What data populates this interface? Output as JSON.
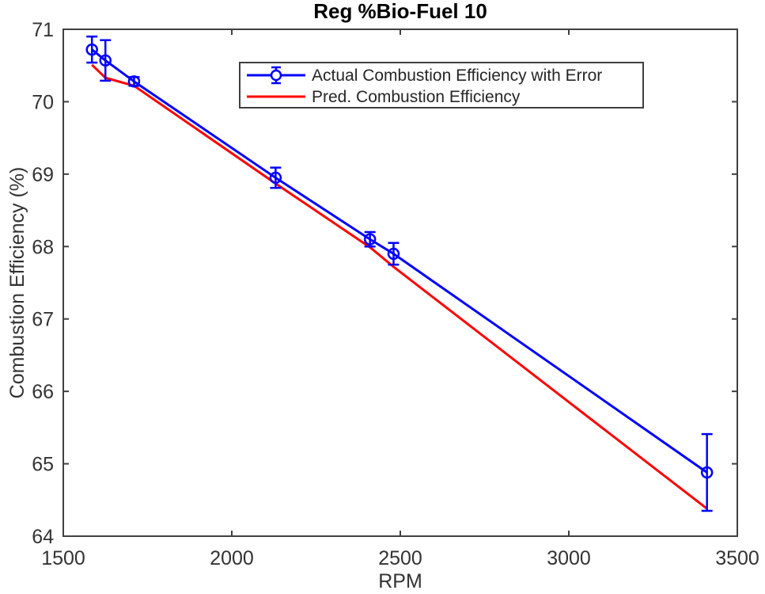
{
  "figure": {
    "background": "#ffffff"
  },
  "chart_data": {
    "type": "line",
    "title": "Reg %Bio-Fuel 10",
    "xlabel": "RPM",
    "ylabel": "Combustion Efficiency (%)",
    "xlim": [
      1500,
      3500
    ],
    "ylim": [
      64,
      71
    ],
    "xticks": [
      1500,
      2000,
      2500,
      3000,
      3500
    ],
    "yticks": [
      64,
      65,
      66,
      67,
      68,
      69,
      70,
      71
    ],
    "grid": false,
    "box": true,
    "legend_position": "inside-upper-center",
    "x": [
      1585,
      1625,
      1710,
      2130,
      2410,
      2480,
      3410
    ],
    "series": [
      {
        "name": "Actual Combustion Efficiency with Error",
        "color": "#0000ff",
        "marker": "open-circle",
        "has_error_bars": true,
        "values": [
          70.72,
          70.57,
          70.28,
          68.95,
          68.1,
          67.9,
          64.88
        ],
        "yerr": [
          0.18,
          0.28,
          0.06,
          0.14,
          0.1,
          0.15,
          0.53
        ]
      },
      {
        "name": "Pred. Combustion Efficiency",
        "color": "#ff0000",
        "marker": "none",
        "has_error_bars": false,
        "values": [
          70.51,
          70.33,
          70.22,
          68.87,
          67.99,
          67.72,
          64.38
        ]
      }
    ]
  },
  "colors": {
    "axis_frame": "#404040",
    "tick_text": "#333333",
    "title_text": "#000000",
    "legend_border": "#404040",
    "legend_background": "#ffffff",
    "actual_series": "#0000ff",
    "pred_series": "#ff0000"
  }
}
